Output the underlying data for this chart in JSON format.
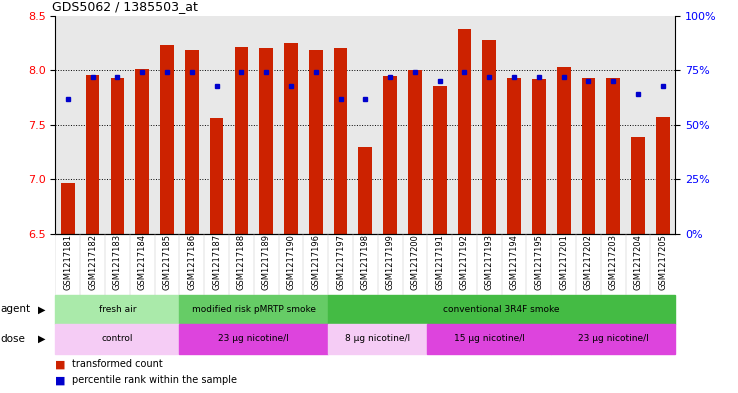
{
  "title": "GDS5062 / 1385503_at",
  "samples": [
    "GSM1217181",
    "GSM1217182",
    "GSM1217183",
    "GSM1217184",
    "GSM1217185",
    "GSM1217186",
    "GSM1217187",
    "GSM1217188",
    "GSM1217189",
    "GSM1217190",
    "GSM1217196",
    "GSM1217197",
    "GSM1217198",
    "GSM1217199",
    "GSM1217200",
    "GSM1217191",
    "GSM1217192",
    "GSM1217193",
    "GSM1217194",
    "GSM1217195",
    "GSM1217201",
    "GSM1217202",
    "GSM1217203",
    "GSM1217204",
    "GSM1217205"
  ],
  "bar_values": [
    6.97,
    7.96,
    7.93,
    8.01,
    8.23,
    8.19,
    7.56,
    8.21,
    8.2,
    8.25,
    8.19,
    8.2,
    7.3,
    7.95,
    8.0,
    7.86,
    8.38,
    8.28,
    7.93,
    7.92,
    8.03,
    7.93,
    7.93,
    7.39,
    7.57
  ],
  "percentile_values": [
    62,
    72,
    72,
    74,
    74,
    74,
    68,
    74,
    74,
    68,
    74,
    62,
    62,
    72,
    74,
    70,
    74,
    72,
    72,
    72,
    72,
    70,
    70,
    64,
    68
  ],
  "ylim_left": [
    6.5,
    8.5
  ],
  "ylim_right": [
    0,
    100
  ],
  "yticks_left": [
    6.5,
    7.0,
    7.5,
    8.0,
    8.5
  ],
  "yticks_right": [
    0,
    25,
    50,
    75,
    100
  ],
  "bar_color": "#cc2200",
  "dot_color": "#0000cc",
  "bg_color": "#e8e8e8",
  "agent_groups": [
    {
      "label": "fresh air",
      "start": 0,
      "end": 5,
      "color": "#aaeaaa"
    },
    {
      "label": "modified risk pMRTP smoke",
      "start": 5,
      "end": 11,
      "color": "#66cc66"
    },
    {
      "label": "conventional 3R4F smoke",
      "start": 11,
      "end": 25,
      "color": "#44bb44"
    }
  ],
  "dose_groups": [
    {
      "label": "control",
      "start": 0,
      "end": 5,
      "color": "#f5ccf5"
    },
    {
      "label": "23 μg nicotine/l",
      "start": 5,
      "end": 11,
      "color": "#dd44dd"
    },
    {
      "label": "8 μg nicotine/l",
      "start": 11,
      "end": 15,
      "color": "#f5ccf5"
    },
    {
      "label": "15 μg nicotine/l",
      "start": 15,
      "end": 20,
      "color": "#dd44dd"
    },
    {
      "label": "23 μg nicotine/l",
      "start": 20,
      "end": 25,
      "color": "#dd44dd"
    }
  ],
  "legend_items": [
    {
      "label": "transformed count",
      "color": "#cc2200"
    },
    {
      "label": "percentile rank within the sample",
      "color": "#0000cc"
    }
  ]
}
